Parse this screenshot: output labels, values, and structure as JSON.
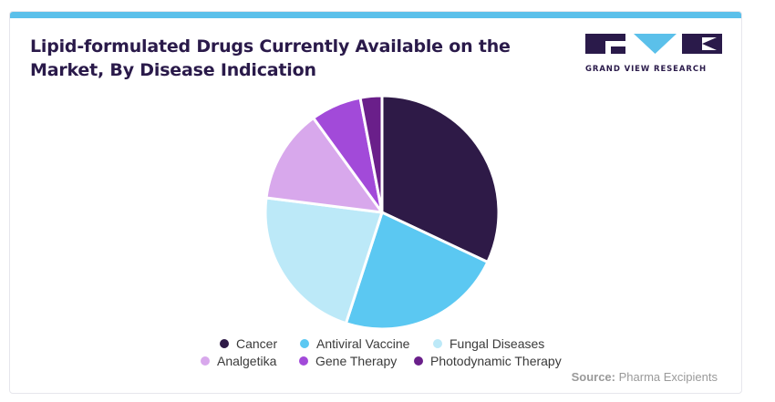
{
  "chart_data": {
    "type": "pie",
    "title": "Lipid-formulated Drugs Currently Available on the Market, By Disease Indication",
    "slices": [
      {
        "label": "Cancer",
        "value": 32,
        "color": "#2e1a47"
      },
      {
        "label": "Antiviral Vaccine",
        "value": 23,
        "color": "#5bc8f2"
      },
      {
        "label": "Fungal Diseases",
        "value": 22,
        "color": "#bce9f8"
      },
      {
        "label": "Analgetika",
        "value": 13,
        "color": "#d8a8ec"
      },
      {
        "label": "Gene Therapy",
        "value": 7,
        "color": "#a24ad9"
      },
      {
        "label": "Photodynamic Therapy",
        "value": 3,
        "color": "#6a1f8a"
      }
    ],
    "legend_placement": "bottom"
  },
  "brand": {
    "name": "GRAND VIEW RESEARCH",
    "logo_color": "#2a1a4a",
    "accent": "#5bc0ea"
  },
  "source": {
    "prefix": "Source:",
    "text": "Pharma Excipients"
  }
}
